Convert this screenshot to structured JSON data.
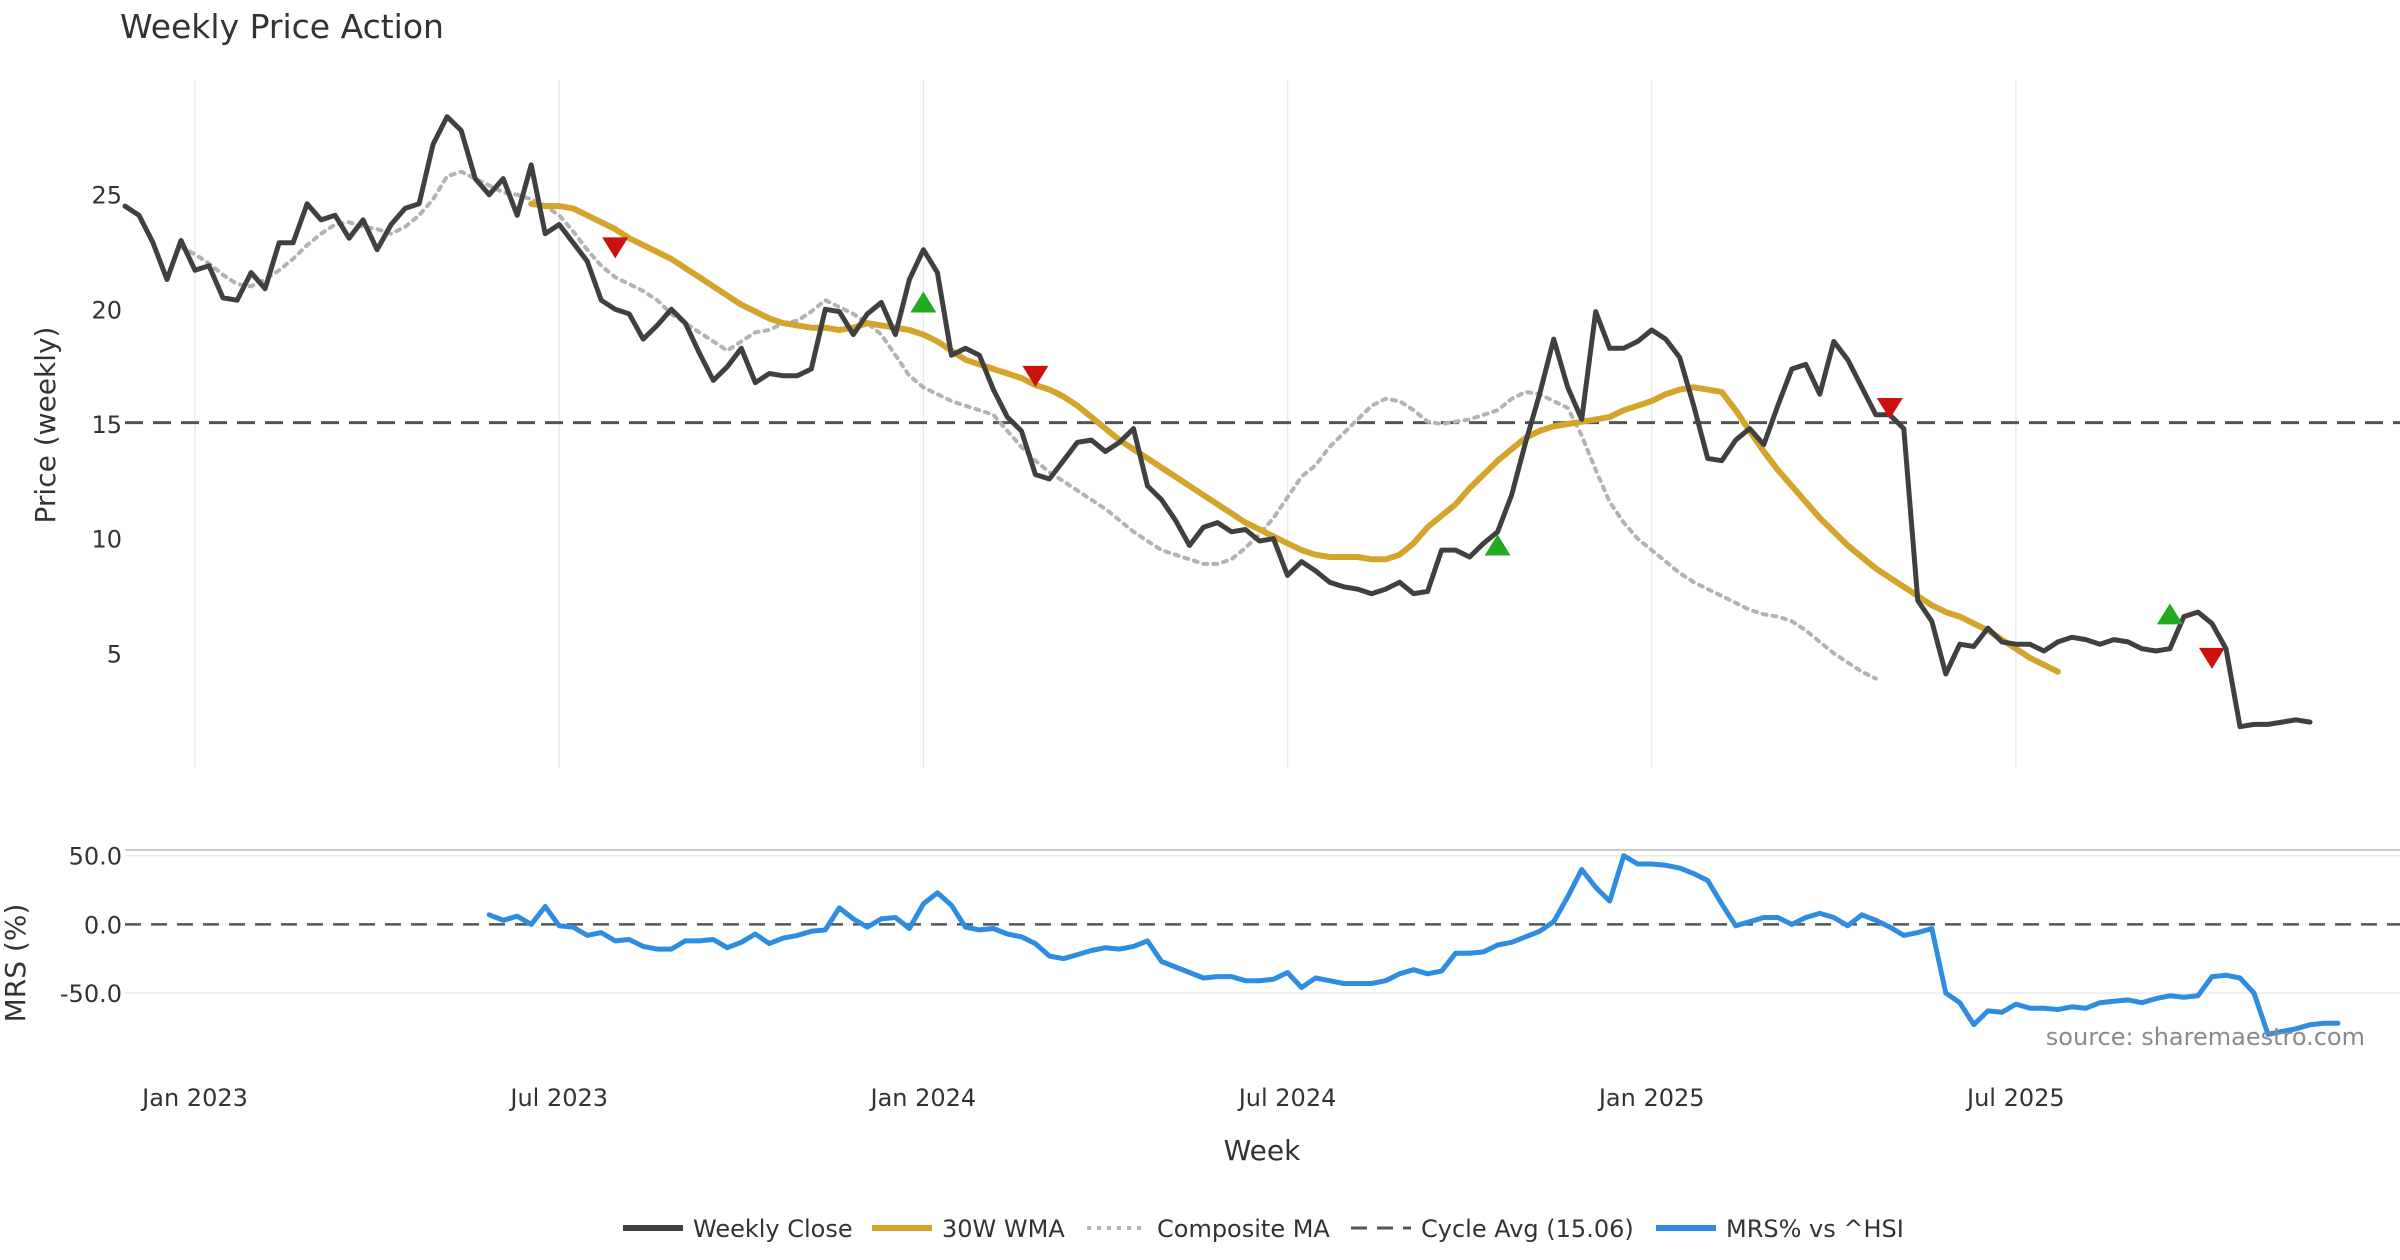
{
  "chart_data": {
    "type": "line",
    "title": "Weekly Price Action",
    "xlabel": "Week",
    "source": "source: sharemaestro.com",
    "x_ticks": [
      "Jan 2023",
      "Jul 2023",
      "Jan 2024",
      "Jul 2024",
      "Jan 2025",
      "Jul 2025"
    ],
    "x_tick_weeks": [
      5,
      31,
      57,
      83,
      109,
      135
    ],
    "price_panel": {
      "ylabel": "Price (weekly)",
      "ylim": [
        0,
        30
      ],
      "y_ticks": [
        5,
        10,
        15,
        20,
        25
      ],
      "y_tick_labels": [
        "5",
        "10",
        "15",
        "20",
        "25"
      ],
      "cycle_avg": 15.06
    },
    "mrs_panel": {
      "ylabel": "MRS (%)",
      "ylim": [
        -90,
        60
      ],
      "y_ticks": [
        50,
        0,
        -50
      ],
      "y_tick_labels": [
        "50.0",
        "0.0",
        "-50.0"
      ],
      "zero_line": 0
    },
    "legend": [
      {
        "label": "Weekly Close",
        "color": "#404040",
        "style": "solid"
      },
      {
        "label": "30W WMA",
        "color": "#d4a52a",
        "style": "solid"
      },
      {
        "label": "Composite MA",
        "color": "#b3b3b3",
        "style": "dotted"
      },
      {
        "label": "Cycle Avg (15.06)",
        "color": "#555555",
        "style": "dashed"
      },
      {
        "label": "MRS% vs ^HSI",
        "color": "#2e8de0",
        "style": "solid"
      }
    ],
    "series": [
      {
        "name": "Weekly Close",
        "x_start": 0,
        "values": [
          24.5,
          24.1,
          22.9,
          21.3,
          23.0,
          21.7,
          21.9,
          20.5,
          20.4,
          21.6,
          20.9,
          22.9,
          22.9,
          24.6,
          23.9,
          24.1,
          23.1,
          23.9,
          22.6,
          23.7,
          24.4,
          24.6,
          27.2,
          28.4,
          27.8,
          25.7,
          25.0,
          25.7,
          24.1,
          26.3,
          23.3,
          23.7,
          22.9,
          22.1,
          20.4,
          20.0,
          19.8,
          18.7,
          19.3,
          20.0,
          19.4,
          18.1,
          16.9,
          17.5,
          18.3,
          16.8,
          17.2,
          17.1,
          17.1,
          17.4,
          20.0,
          19.9,
          18.9,
          19.8,
          20.3,
          18.9,
          21.3,
          22.6,
          21.6,
          18.0,
          18.3,
          18.0,
          16.5,
          15.3,
          14.7,
          12.8,
          12.6,
          13.4,
          14.2,
          14.3,
          13.8,
          14.2,
          14.8,
          12.3,
          11.7,
          10.8,
          9.7,
          10.5,
          10.7,
          10.3,
          10.4,
          9.9,
          10.0,
          8.4,
          9.0,
          8.6,
          8.1,
          7.9,
          7.8,
          7.6,
          7.8,
          8.1,
          7.6,
          7.7,
          9.5,
          9.5,
          9.2,
          9.8,
          10.3,
          11.9,
          14.2,
          16.3,
          18.7,
          16.6,
          15.2,
          19.9,
          18.3,
          18.3,
          18.6,
          19.1,
          18.7,
          17.9,
          15.8,
          13.5,
          13.4,
          14.3,
          14.8,
          14.1,
          15.8,
          17.4,
          17.6,
          16.3,
          18.6,
          17.8,
          16.6,
          15.4,
          15.4,
          14.8,
          7.3,
          6.4,
          4.1,
          5.4,
          5.3,
          6.1,
          5.5,
          5.4,
          5.4,
          5.1,
          5.5,
          5.7,
          5.6,
          5.4,
          5.6,
          5.5,
          5.2,
          5.1,
          5.2,
          6.6,
          6.8,
          6.3,
          5.2,
          1.8,
          1.9,
          1.9,
          2.0,
          2.1,
          2.0
        ]
      },
      {
        "name": "30W WMA",
        "x_start": 29,
        "values": [
          24.6,
          24.5,
          24.5,
          24.4,
          24.1,
          23.8,
          23.5,
          23.1,
          22.8,
          22.5,
          22.2,
          21.8,
          21.4,
          21.0,
          20.6,
          20.2,
          19.9,
          19.6,
          19.4,
          19.3,
          19.2,
          19.2,
          19.1,
          19.2,
          19.4,
          19.3,
          19.2,
          19.1,
          18.9,
          18.6,
          18.2,
          17.8,
          17.6,
          17.4,
          17.2,
          17.0,
          16.7,
          16.5,
          16.2,
          15.8,
          15.3,
          14.8,
          14.3,
          13.9,
          13.5,
          13.1,
          12.7,
          12.3,
          11.9,
          11.5,
          11.1,
          10.7,
          10.4,
          10.1,
          9.8,
          9.5,
          9.3,
          9.2,
          9.2,
          9.2,
          9.1,
          9.1,
          9.3,
          9.8,
          10.5,
          11.0,
          11.5,
          12.2,
          12.8,
          13.4,
          13.9,
          14.4,
          14.7,
          14.9,
          15.0,
          15.1,
          15.2,
          15.3,
          15.6,
          15.8,
          16.0,
          16.3,
          16.5,
          16.6,
          16.5,
          16.4,
          15.6,
          14.7,
          13.8,
          13.0,
          12.3,
          11.6,
          10.9,
          10.3,
          9.7,
          9.2,
          8.7,
          8.3,
          7.9,
          7.5,
          7.1,
          6.8,
          6.6,
          6.3,
          6.0,
          5.6,
          5.2,
          4.8,
          4.5,
          4.2
        ]
      },
      {
        "name": "Composite MA",
        "x_start": 4,
        "values": [
          22.7,
          22.4,
          22.0,
          21.5,
          21.1,
          21.0,
          21.3,
          21.7,
          22.2,
          22.8,
          23.3,
          23.7,
          23.8,
          23.6,
          23.5,
          23.3,
          23.6,
          24.1,
          24.8,
          25.8,
          26.0,
          25.7,
          25.4,
          25.1,
          25.0,
          24.8,
          24.5,
          24.1,
          23.4,
          22.6,
          21.9,
          21.4,
          21.1,
          20.8,
          20.4,
          19.8,
          19.4,
          19.0,
          18.6,
          18.2,
          18.6,
          19.0,
          19.1,
          19.4,
          19.5,
          19.9,
          20.4,
          20.1,
          19.8,
          19.4,
          18.9,
          18.0,
          17.1,
          16.6,
          16.3,
          16.0,
          15.8,
          15.6,
          15.4,
          14.7,
          14.0,
          13.4,
          12.9,
          12.5,
          12.1,
          11.7,
          11.3,
          10.8,
          10.3,
          9.9,
          9.5,
          9.3,
          9.1,
          8.9,
          8.9,
          9.1,
          9.6,
          10.2,
          10.9,
          11.8,
          12.7,
          13.2,
          14.0,
          14.6,
          15.2,
          15.8,
          16.1,
          16.0,
          15.6,
          15.1,
          15.0,
          15.1,
          15.2,
          15.4,
          15.6,
          16.1,
          16.4,
          16.3,
          16.0,
          15.7,
          14.5,
          13.0,
          11.6,
          10.7,
          10.0,
          9.5,
          9.0,
          8.5,
          8.1,
          7.8,
          7.5,
          7.2,
          6.9,
          6.7,
          6.6,
          6.4,
          6.0,
          5.5,
          5.0,
          4.6,
          4.2,
          3.9
        ]
      },
      {
        "name": "MRS% vs ^HSI",
        "panel": "mrs",
        "x_start": 26,
        "values": [
          7,
          3,
          6,
          0,
          13,
          -1,
          -2,
          -8,
          -6,
          -12,
          -11,
          -16,
          -18,
          -18,
          -12,
          -12,
          -11,
          -17,
          -13,
          -7,
          -14,
          -10,
          -8,
          -5,
          -4,
          12,
          4,
          -2,
          4,
          5,
          -3,
          15,
          23,
          14,
          -2,
          -4,
          -3,
          -7,
          -9,
          -14,
          -23,
          -25,
          -22,
          -19,
          -17,
          -18,
          -16,
          -12,
          -27,
          -31,
          -35,
          -39,
          -38,
          -38,
          -41,
          -41,
          -40,
          -35,
          -46,
          -39,
          -41,
          -43,
          -43,
          -43,
          -41,
          -36,
          -33,
          -36,
          -34,
          -21,
          -21,
          -20,
          -15,
          -13,
          -9,
          -5,
          2,
          20,
          40,
          27,
          17,
          50,
          44,
          44,
          43,
          41,
          37,
          32,
          15,
          -1,
          2,
          5,
          5,
          0,
          5,
          8,
          5,
          -1,
          7,
          3,
          -2,
          -8,
          -6,
          -3,
          -50,
          -57,
          -73,
          -63,
          -64,
          -58,
          -61,
          -61,
          -62,
          -60,
          -61,
          -57,
          -56,
          -55,
          -57,
          -54,
          -52,
          -53,
          -52,
          -38,
          -37,
          -39,
          -50,
          -80,
          -78,
          -76,
          -73,
          -72,
          -72
        ]
      }
    ],
    "markers": {
      "buy": [
        {
          "week": 57,
          "value": 20.3
        },
        {
          "week": 98,
          "value": 9.7
        },
        {
          "week": 146,
          "value": 6.7
        }
      ],
      "sell": [
        {
          "week": 35,
          "value": 22.7
        },
        {
          "week": 65,
          "value": 17.1
        },
        {
          "week": 126,
          "value": 15.7
        },
        {
          "week": 149,
          "value": 4.8
        }
      ]
    }
  }
}
